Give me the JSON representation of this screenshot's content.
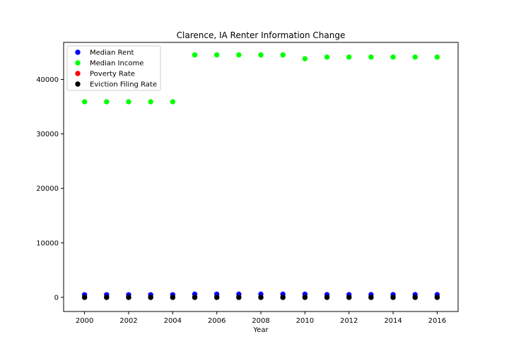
{
  "chart_data": {
    "type": "scatter",
    "title": "Clarence, IA Renter Information Change",
    "xlabel": "Year",
    "ylabel": "",
    "xlim": [
      1999.05,
      2016.95
    ],
    "ylim": [
      -2600,
      46800
    ],
    "xticks": [
      2000,
      2002,
      2004,
      2006,
      2008,
      2010,
      2012,
      2014,
      2016
    ],
    "yticks": [
      0,
      10000,
      20000,
      30000,
      40000
    ],
    "grid": false,
    "legend_position": "top-left",
    "x": [
      2000,
      2001,
      2002,
      2003,
      2004,
      2005,
      2006,
      2007,
      2008,
      2009,
      2010,
      2011,
      2012,
      2013,
      2014,
      2015,
      2016
    ],
    "series": [
      {
        "name": "Median Rent",
        "color": "#0000ff",
        "values": [
          475,
          475,
          475,
          475,
          475,
          575,
          575,
          575,
          575,
          575,
          575,
          495,
          495,
          495,
          495,
          495,
          495
        ]
      },
      {
        "name": "Median Income",
        "color": "#00ff00",
        "values": [
          35900,
          35900,
          35900,
          35900,
          35900,
          44500,
          44500,
          44500,
          44500,
          44500,
          43800,
          44100,
          44100,
          44100,
          44100,
          44100,
          44100
        ]
      },
      {
        "name": "Poverty Rate",
        "color": "#ff0000",
        "values": [
          5,
          5,
          5,
          5,
          5,
          6,
          6,
          6,
          6,
          6,
          8,
          8,
          8,
          8,
          8,
          8,
          8
        ]
      },
      {
        "name": "Eviction Filing Rate",
        "color": "#000000",
        "values": [
          0,
          0,
          0,
          0,
          0,
          0,
          0,
          0,
          0,
          0,
          0,
          0,
          0,
          0,
          0,
          0,
          0
        ]
      }
    ]
  }
}
